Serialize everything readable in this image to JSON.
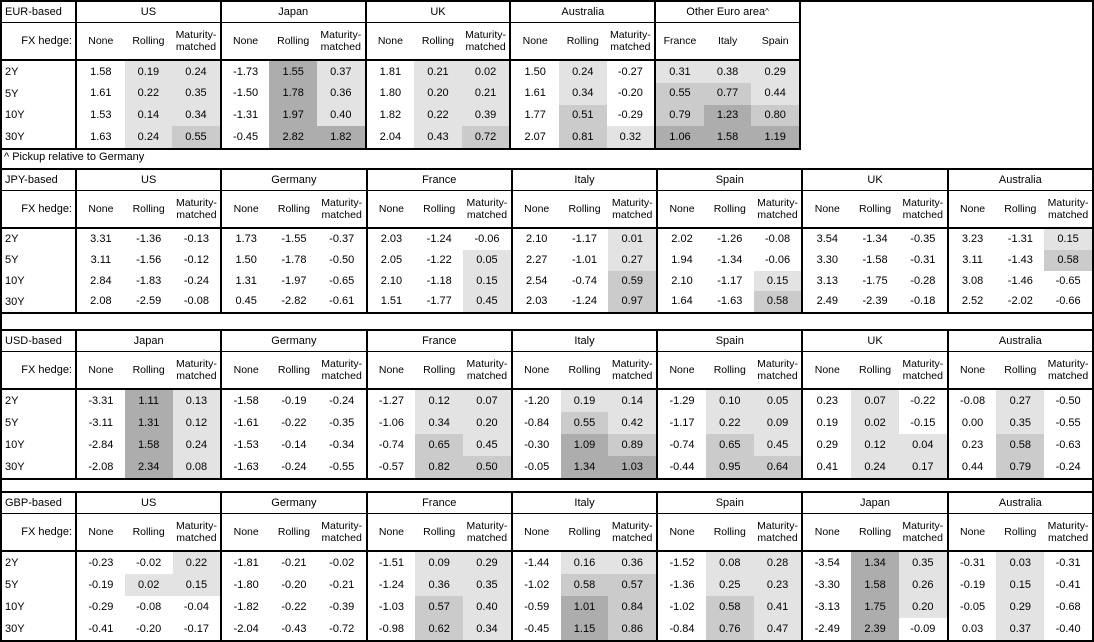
{
  "note": "^ Pickup relative to Germany",
  "fx_hedge_label": "FX hedge:",
  "colors": {
    "shade_light": "#e3e3e3",
    "shade_medium": "#cbcbcb",
    "shade_dark": "#adadad",
    "border": "#000000",
    "background": "#ffffff"
  },
  "shading_rule": {
    "none_column": "unshaded",
    "negative": "unshaded",
    "0_to_0.5": "light",
    "0.5_to_1.0": "medium",
    "1.0_and_above": "dark"
  },
  "chart_data": [
    {
      "type": "table",
      "title": "EUR-based",
      "row_labels": [
        "2Y",
        "5Y",
        "10Y",
        "30Y"
      ],
      "groups": [
        {
          "name": "US",
          "cols": [
            "None",
            "Rolling",
            "Maturity-matched"
          ],
          "rows": [
            [
              "1.58",
              "0.19",
              "0.24"
            ],
            [
              "1.61",
              "0.22",
              "0.35"
            ],
            [
              "1.53",
              "0.14",
              "0.34"
            ],
            [
              "1.63",
              "0.24",
              "0.55"
            ]
          ]
        },
        {
          "name": "Japan",
          "cols": [
            "None",
            "Rolling",
            "Maturity-matched"
          ],
          "rows": [
            [
              "-1.73",
              "1.55",
              "0.37"
            ],
            [
              "-1.50",
              "1.78",
              "0.36"
            ],
            [
              "-1.31",
              "1.97",
              "0.40"
            ],
            [
              "-0.45",
              "2.82",
              "1.82"
            ]
          ]
        },
        {
          "name": "UK",
          "cols": [
            "None",
            "Rolling",
            "Maturity-matched"
          ],
          "rows": [
            [
              "1.81",
              "0.21",
              "0.02"
            ],
            [
              "1.80",
              "0.20",
              "0.21"
            ],
            [
              "1.82",
              "0.22",
              "0.39"
            ],
            [
              "2.04",
              "0.43",
              "0.72"
            ]
          ]
        },
        {
          "name": "Australia",
          "cols": [
            "None",
            "Rolling",
            "Maturity-matched"
          ],
          "rows": [
            [
              "1.50",
              "0.24",
              "-0.27"
            ],
            [
              "1.61",
              "0.34",
              "-0.20"
            ],
            [
              "1.77",
              "0.51",
              "-0.29"
            ],
            [
              "2.07",
              "0.81",
              "0.32"
            ]
          ]
        },
        {
          "name": "Other Euro area",
          "sup": "^",
          "cols": [
            "France",
            "Italy",
            "Spain"
          ],
          "rows": [
            [
              "0.31",
              "0.38",
              "0.29"
            ],
            [
              "0.55",
              "0.77",
              "0.44"
            ],
            [
              "0.79",
              "1.23",
              "0.80"
            ],
            [
              "1.06",
              "1.58",
              "1.19"
            ]
          ]
        }
      ]
    },
    {
      "type": "table",
      "title": "JPY-based",
      "row_labels": [
        "2Y",
        "5Y",
        "10Y",
        "30Y"
      ],
      "groups": [
        {
          "name": "US",
          "cols": [
            "None",
            "Rolling",
            "Maturity-matched"
          ],
          "rows": [
            [
              "3.31",
              "-1.36",
              "-0.13"
            ],
            [
              "3.11",
              "-1.56",
              "-0.12"
            ],
            [
              "2.84",
              "-1.83",
              "-0.24"
            ],
            [
              "2.08",
              "-2.59",
              "-0.08"
            ]
          ]
        },
        {
          "name": "Germany",
          "cols": [
            "None",
            "Rolling",
            "Maturity-matched"
          ],
          "rows": [
            [
              "1.73",
              "-1.55",
              "-0.37"
            ],
            [
              "1.50",
              "-1.78",
              "-0.50"
            ],
            [
              "1.31",
              "-1.97",
              "-0.65"
            ],
            [
              "0.45",
              "-2.82",
              "-0.61"
            ]
          ]
        },
        {
          "name": "France",
          "cols": [
            "None",
            "Rolling",
            "Maturity-matched"
          ],
          "rows": [
            [
              "2.03",
              "-1.24",
              "-0.06"
            ],
            [
              "2.05",
              "-1.22",
              "0.05"
            ],
            [
              "2.10",
              "-1.18",
              "0.15"
            ],
            [
              "1.51",
              "-1.77",
              "0.45"
            ]
          ]
        },
        {
          "name": "Italy",
          "cols": [
            "None",
            "Rolling",
            "Maturity-matched"
          ],
          "rows": [
            [
              "2.10",
              "-1.17",
              "0.01"
            ],
            [
              "2.27",
              "-1.01",
              "0.27"
            ],
            [
              "2.54",
              "-0.74",
              "0.59"
            ],
            [
              "2.03",
              "-1.24",
              "0.97"
            ]
          ]
        },
        {
          "name": "Spain",
          "cols": [
            "None",
            "Rolling",
            "Maturity-matched"
          ],
          "rows": [
            [
              "2.02",
              "-1.26",
              "-0.08"
            ],
            [
              "1.94",
              "-1.34",
              "-0.06"
            ],
            [
              "2.10",
              "-1.17",
              "0.15"
            ],
            [
              "1.64",
              "-1.63",
              "0.58"
            ]
          ]
        },
        {
          "name": "UK",
          "cols": [
            "None",
            "Rolling",
            "Maturity-matched"
          ],
          "rows": [
            [
              "3.54",
              "-1.34",
              "-0.35"
            ],
            [
              "3.30",
              "-1.58",
              "-0.31"
            ],
            [
              "3.13",
              "-1.75",
              "-0.28"
            ],
            [
              "2.49",
              "-2.39",
              "-0.18"
            ]
          ]
        },
        {
          "name": "Australia",
          "cols": [
            "None",
            "Rolling",
            "Maturity-matched"
          ],
          "rows": [
            [
              "3.23",
              "-1.31",
              "0.15"
            ],
            [
              "3.11",
              "-1.43",
              "0.58"
            ],
            [
              "3.08",
              "-1.46",
              "-0.65"
            ],
            [
              "2.52",
              "-2.02",
              "-0.66"
            ]
          ]
        }
      ]
    },
    {
      "type": "table",
      "title": "USD-based",
      "row_labels": [
        "2Y",
        "5Y",
        "10Y",
        "30Y"
      ],
      "groups": [
        {
          "name": "Japan",
          "cols": [
            "None",
            "Rolling",
            "Maturity-matched"
          ],
          "rows": [
            [
              "-3.31",
              "1.11",
              "0.13"
            ],
            [
              "-3.11",
              "1.31",
              "0.12"
            ],
            [
              "-2.84",
              "1.58",
              "0.24"
            ],
            [
              "-2.08",
              "2.34",
              "0.08"
            ]
          ]
        },
        {
          "name": "Germany",
          "cols": [
            "None",
            "Rolling",
            "Maturity-matched"
          ],
          "rows": [
            [
              "-1.58",
              "-0.19",
              "-0.24"
            ],
            [
              "-1.61",
              "-0.22",
              "-0.35"
            ],
            [
              "-1.53",
              "-0.14",
              "-0.34"
            ],
            [
              "-1.63",
              "-0.24",
              "-0.55"
            ]
          ]
        },
        {
          "name": "France",
          "cols": [
            "None",
            "Rolling",
            "Maturity-matched"
          ],
          "rows": [
            [
              "-1.27",
              "0.12",
              "0.07"
            ],
            [
              "-1.06",
              "0.34",
              "0.20"
            ],
            [
              "-0.74",
              "0.65",
              "0.45"
            ],
            [
              "-0.57",
              "0.82",
              "0.50"
            ]
          ]
        },
        {
          "name": "Italy",
          "cols": [
            "None",
            "Rolling",
            "Maturity-matched"
          ],
          "rows": [
            [
              "-1.20",
              "0.19",
              "0.14"
            ],
            [
              "-0.84",
              "0.55",
              "0.42"
            ],
            [
              "-0.30",
              "1.09",
              "0.89"
            ],
            [
              "-0.05",
              "1.34",
              "1.03"
            ]
          ]
        },
        {
          "name": "Spain",
          "cols": [
            "None",
            "Rolling",
            "Maturity-matched"
          ],
          "rows": [
            [
              "-1.29",
              "0.10",
              "0.05"
            ],
            [
              "-1.17",
              "0.22",
              "0.09"
            ],
            [
              "-0.74",
              "0.65",
              "0.45"
            ],
            [
              "-0.44",
              "0.95",
              "0.64"
            ]
          ]
        },
        {
          "name": "UK",
          "cols": [
            "None",
            "Rolling",
            "Maturity-matched"
          ],
          "rows": [
            [
              "0.23",
              "0.07",
              "-0.22"
            ],
            [
              "0.19",
              "0.02",
              "-0.15"
            ],
            [
              "0.29",
              "0.12",
              "0.04"
            ],
            [
              "0.41",
              "0.24",
              "0.17"
            ]
          ]
        },
        {
          "name": "Australia",
          "cols": [
            "None",
            "Rolling",
            "Maturity-matched"
          ],
          "rows": [
            [
              "-0.08",
              "0.27",
              "-0.50"
            ],
            [
              "0.00",
              "0.35",
              "-0.55"
            ],
            [
              "0.23",
              "0.58",
              "-0.63"
            ],
            [
              "0.44",
              "0.79",
              "-0.24"
            ]
          ]
        }
      ]
    },
    {
      "type": "table",
      "title": "GBP-based",
      "row_labels": [
        "2Y",
        "5Y",
        "10Y",
        "30Y"
      ],
      "groups": [
        {
          "name": "US",
          "cols": [
            "None",
            "Rolling",
            "Maturity-matched"
          ],
          "rows": [
            [
              "-0.23",
              "-0.02",
              "0.22"
            ],
            [
              "-0.19",
              "0.02",
              "0.15"
            ],
            [
              "-0.29",
              "-0.08",
              "-0.04"
            ],
            [
              "-0.41",
              "-0.20",
              "-0.17"
            ]
          ]
        },
        {
          "name": "Germany",
          "cols": [
            "None",
            "Rolling",
            "Maturity-matched"
          ],
          "rows": [
            [
              "-1.81",
              "-0.21",
              "-0.02"
            ],
            [
              "-1.80",
              "-0.20",
              "-0.21"
            ],
            [
              "-1.82",
              "-0.22",
              "-0.39"
            ],
            [
              "-2.04",
              "-0.43",
              "-0.72"
            ]
          ]
        },
        {
          "name": "France",
          "cols": [
            "None",
            "Rolling",
            "Maturity-matched"
          ],
          "rows": [
            [
              "-1.51",
              "0.09",
              "0.29"
            ],
            [
              "-1.24",
              "0.36",
              "0.35"
            ],
            [
              "-1.03",
              "0.57",
              "0.40"
            ],
            [
              "-0.98",
              "0.62",
              "0.34"
            ]
          ]
        },
        {
          "name": "Italy",
          "cols": [
            "None",
            "Rolling",
            "Maturity-matched"
          ],
          "rows": [
            [
              "-1.44",
              "0.16",
              "0.36"
            ],
            [
              "-1.02",
              "0.58",
              "0.57"
            ],
            [
              "-0.59",
              "1.01",
              "0.84"
            ],
            [
              "-0.45",
              "1.15",
              "0.86"
            ]
          ]
        },
        {
          "name": "Spain",
          "cols": [
            "None",
            "Rolling",
            "Maturity-matched"
          ],
          "rows": [
            [
              "-1.52",
              "0.08",
              "0.28"
            ],
            [
              "-1.36",
              "0.25",
              "0.23"
            ],
            [
              "-1.02",
              "0.58",
              "0.41"
            ],
            [
              "-0.84",
              "0.76",
              "0.47"
            ]
          ]
        },
        {
          "name": "Japan",
          "cols": [
            "None",
            "Rolling",
            "Maturity-matched"
          ],
          "rows": [
            [
              "-3.54",
              "1.34",
              "0.35"
            ],
            [
              "-3.30",
              "1.58",
              "0.26"
            ],
            [
              "-3.13",
              "1.75",
              "0.20"
            ],
            [
              "-2.49",
              "2.39",
              "-0.09"
            ]
          ]
        },
        {
          "name": "Australia",
          "cols": [
            "None",
            "Rolling",
            "Maturity-matched"
          ],
          "rows": [
            [
              "-0.31",
              "0.03",
              "-0.31"
            ],
            [
              "-0.19",
              "0.15",
              "-0.41"
            ],
            [
              "-0.05",
              "0.29",
              "-0.68"
            ],
            [
              "0.03",
              "0.37",
              "-0.40"
            ]
          ]
        }
      ]
    }
  ]
}
